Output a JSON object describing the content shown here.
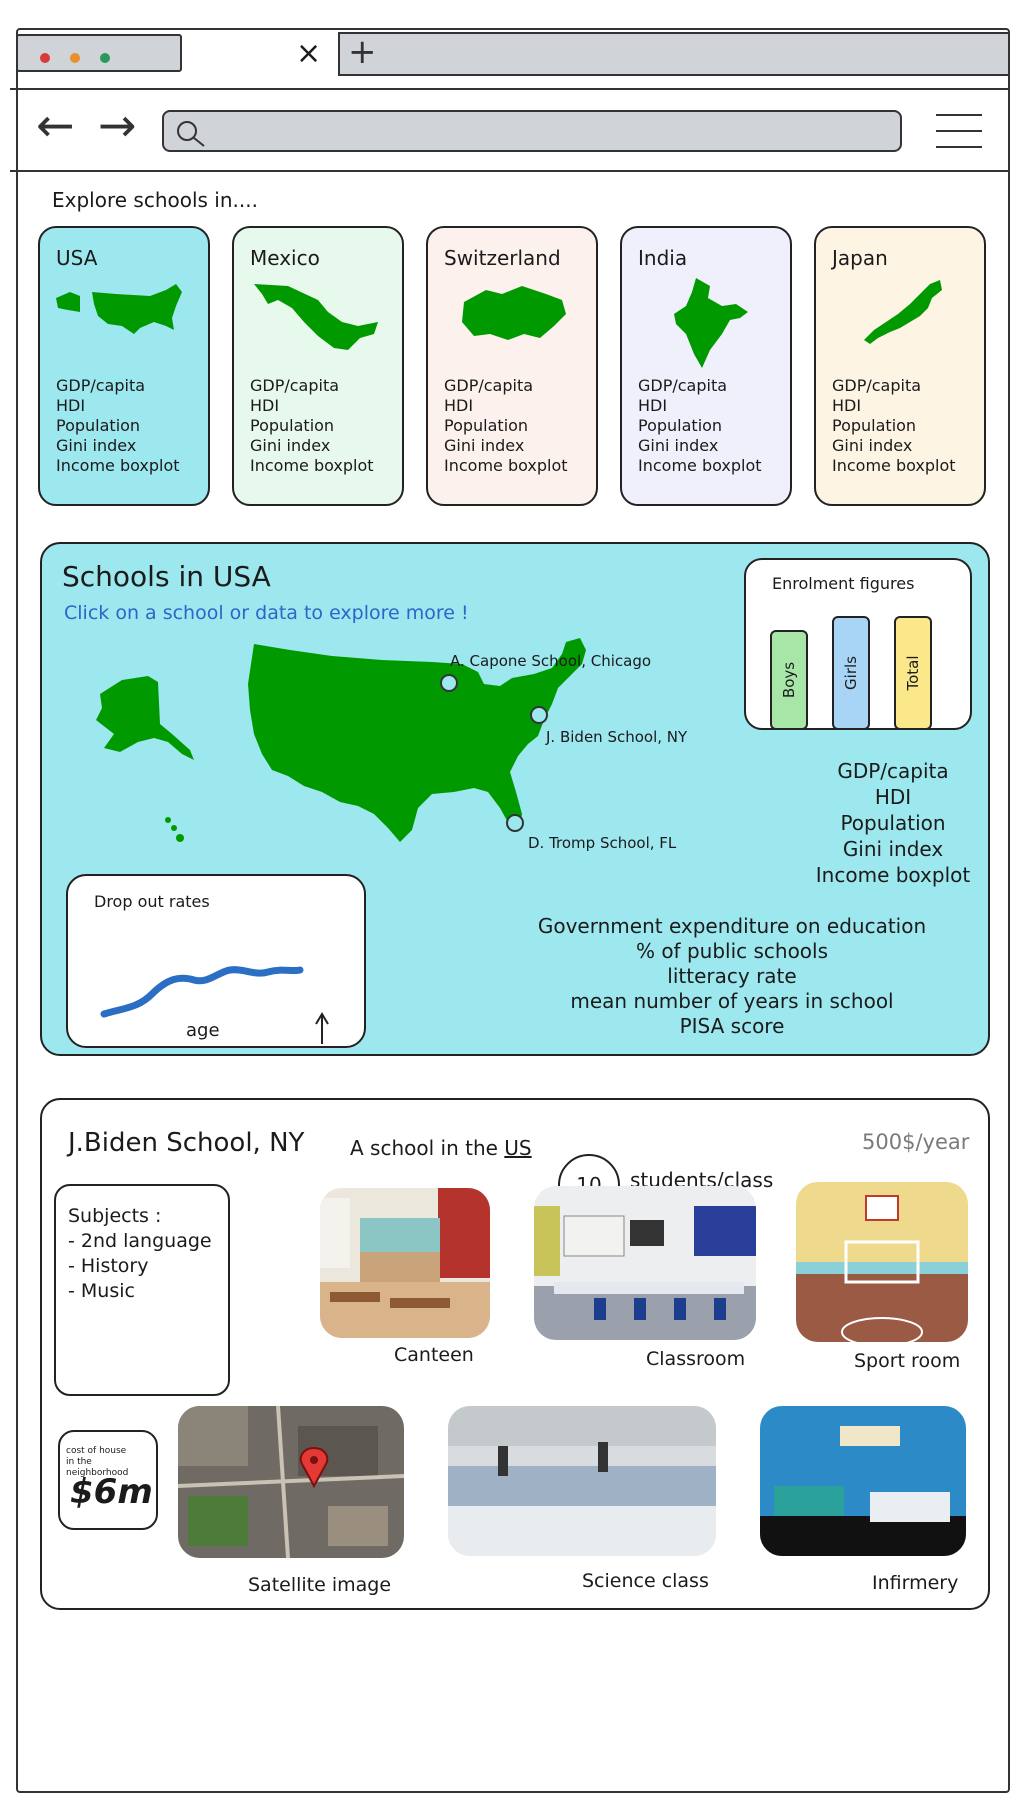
{
  "browser": {
    "tab_close_glyph": "×",
    "new_tab_glyph": "+",
    "back_glyph": "←",
    "forward_glyph": "→",
    "search_placeholder": ""
  },
  "explore": {
    "heading": "Explore schools in....",
    "countries": [
      {
        "name": "USA",
        "color": "#9de7ef",
        "stats": [
          "GDP/capita",
          "HDI",
          "Population",
          "Gini index",
          "Income boxplot"
        ]
      },
      {
        "name": "Mexico",
        "color": "#e7f8ec",
        "stats": [
          "GDP/capita",
          "HDI",
          "Population",
          "Gini index",
          "Income boxplot"
        ]
      },
      {
        "name": "Switzerland",
        "color": "#fdf1ee",
        "stats": [
          "GDP/capita",
          "HDI",
          "Population",
          "Gini index",
          "Income boxplot"
        ]
      },
      {
        "name": "India",
        "color": "#f0f0fd",
        "stats": [
          "GDP/capita",
          "HDI",
          "Population",
          "Gini index",
          "Income boxplot"
        ]
      },
      {
        "name": "Japan",
        "color": "#fdf4e4",
        "stats": [
          "GDP/capita",
          "HDI",
          "Population",
          "Gini index",
          "Income boxplot"
        ]
      }
    ]
  },
  "country_panel": {
    "title": "Schools in USA",
    "subtitle": "Click on a school or data to explore more !",
    "enrolment": {
      "title": "Enrolment figures",
      "bars": [
        {
          "label": "Boys",
          "color": "#a8e6a8"
        },
        {
          "label": "Girls",
          "color": "#a8d4f5"
        },
        {
          "label": "Total",
          "color": "#fbe88a"
        }
      ]
    },
    "schools": [
      {
        "label": "A. Capone School, Chicago"
      },
      {
        "label": "J. Biden School, NY"
      },
      {
        "label": "D. Tromp School, FL"
      }
    ],
    "stats_right": [
      "GDP/capita",
      "HDI",
      "Population",
      "Gini index",
      "Income boxplot"
    ],
    "stats_bottom": [
      "Government expenditure on education",
      "% of public schools",
      "litteracy rate",
      "mean number of years in school",
      "PISA score"
    ],
    "dropout": {
      "title": "Drop out rates",
      "x_label": "age"
    }
  },
  "school_panel": {
    "title": "J.Biden School, NY",
    "subtitle_prefix": "A school in the ",
    "subtitle_link": "US",
    "price": "500$/year",
    "students_per_class_value": "10",
    "students_per_class_label": "students/class",
    "subjects_title": "Subjects :",
    "subjects": [
      "- 2nd language",
      "- History",
      "- Music"
    ],
    "house_cost_label_1": "cost of house",
    "house_cost_label_2": "in the neighborhood",
    "house_cost_value": "$6m",
    "photos": [
      {
        "caption": "Canteen"
      },
      {
        "caption": "Classroom"
      },
      {
        "caption": "Sport room"
      },
      {
        "caption": "Satellite image"
      },
      {
        "caption": "Science class"
      },
      {
        "caption": "Infirmery"
      }
    ]
  }
}
